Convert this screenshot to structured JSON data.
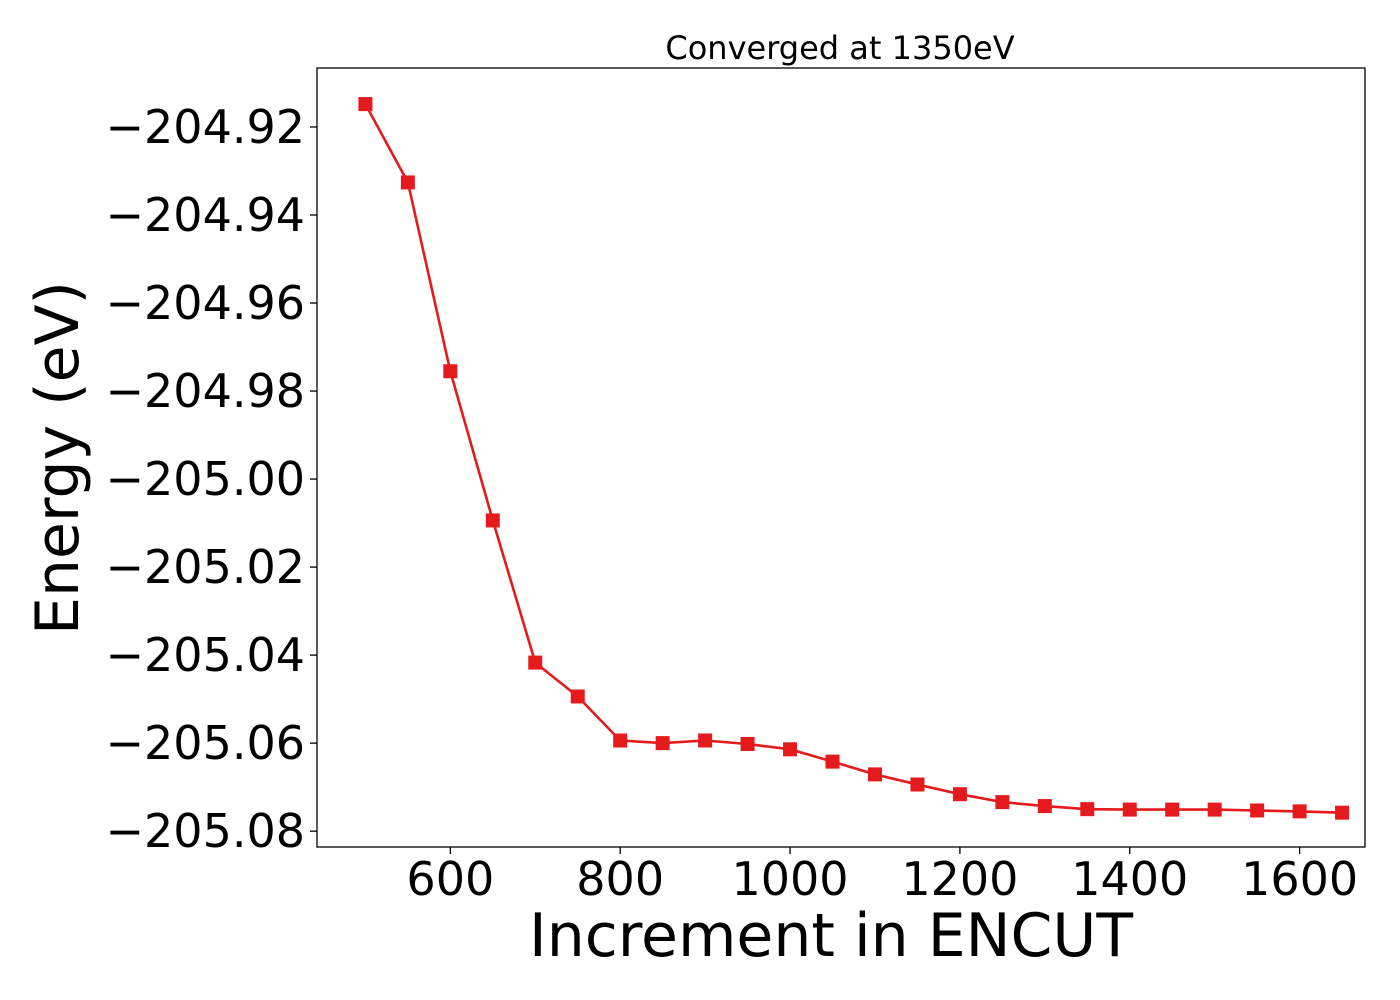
{
  "chart_data": {
    "type": "line",
    "title": "Converged at 1350eV",
    "xlabel": "Increment in ENCUT",
    "ylabel": "Energy (eV)",
    "xlim": [
      443,
      1677
    ],
    "ylim": [
      -205.0836,
      -204.9066
    ],
    "xticks": [
      600,
      800,
      1000,
      1200,
      1400,
      1600
    ],
    "xtick_labels": [
      "600",
      "800",
      "1000",
      "1200",
      "1400",
      "1600"
    ],
    "yticks": [
      -204.92,
      -204.94,
      -204.96,
      -204.98,
      -205.0,
      -205.02,
      -205.04,
      -205.06,
      -205.08
    ],
    "ytick_labels": [
      "−204.92",
      "−204.94",
      "−204.96",
      "−204.98",
      "−205.00",
      "−205.02",
      "−205.04",
      "−205.06",
      "−205.08"
    ],
    "grid": false,
    "series": [
      {
        "color": "#e41a1c",
        "marker": "square",
        "x": [
          500,
          550,
          600,
          650,
          700,
          750,
          800,
          850,
          900,
          950,
          1000,
          1050,
          1100,
          1150,
          1200,
          1250,
          1300,
          1350,
          1400,
          1450,
          1500,
          1550,
          1600,
          1650
        ],
        "y": [
          -204.9148,
          -204.9326,
          -204.9755,
          -205.0094,
          -205.0417,
          -205.0494,
          -205.0594,
          -205.06,
          -205.0594,
          -205.0602,
          -205.0614,
          -205.0642,
          -205.0671,
          -205.0694,
          -205.0716,
          -205.0734,
          -205.0743,
          -205.075,
          -205.0751,
          -205.0751,
          -205.0751,
          -205.0753,
          -205.0755,
          -205.0758
        ]
      }
    ]
  }
}
